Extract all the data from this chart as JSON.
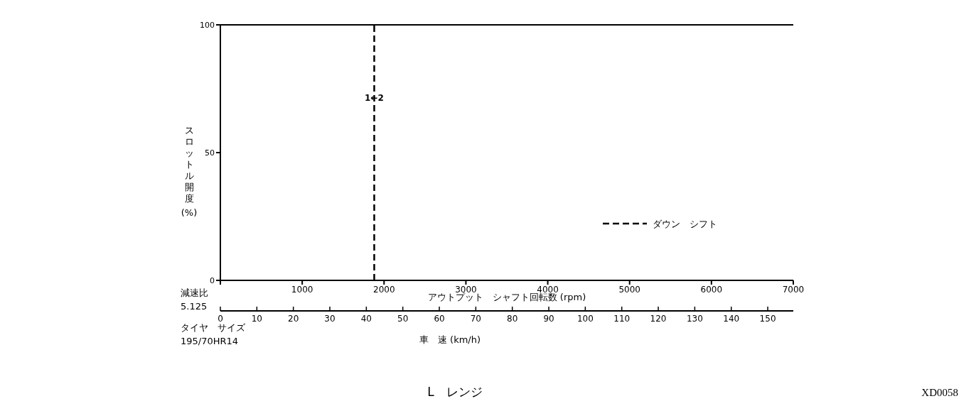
{
  "chart_data": {
    "type": "line",
    "title": "L　レンジ",
    "xlabel": "アウトプット　シャフト回転数 (rpm)",
    "ylabel": "スロットル開度 (%)",
    "x2label": "車　速 (km/h)",
    "xlim": [
      0,
      7000
    ],
    "xticks": [
      {
        "value": 0,
        "label": null
      },
      1000,
      2000,
      3000,
      4000,
      5000,
      6000,
      7000
    ],
    "ylim": [
      0,
      100
    ],
    "yticks": [
      0,
      50,
      100
    ],
    "x2lim": [
      0,
      157
    ],
    "x2ticks": [
      0,
      10,
      20,
      30,
      40,
      50,
      60,
      70,
      80,
      90,
      100,
      110,
      120,
      130,
      140,
      150
    ],
    "series": [
      {
        "name": "ダウン　シフト",
        "color": "#000000",
        "x": [
          1880,
          1880
        ],
        "values": [
          0,
          100
        ],
        "line_style": "dashed"
      }
    ],
    "marker": "none",
    "legend": "bottom right",
    "ref_lines": [
      {
        "axis": "y",
        "value": 100,
        "color": "#000000",
        "line_style": "solid"
      }
    ],
    "annotations": [
      "減速比",
      "5.125",
      "タイヤ　サイズ",
      "195/70HR14",
      "XD0058",
      {
        "text": "1←2",
        "x": 1880,
        "y": 69
      }
    ]
  }
}
